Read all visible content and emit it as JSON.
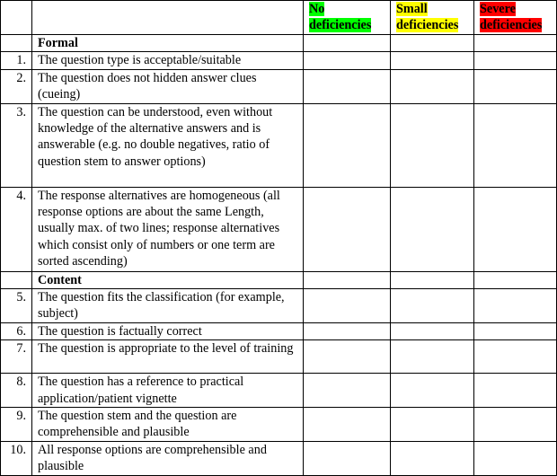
{
  "header": {
    "columns": [
      {
        "label": "No deficiencies",
        "color": "#00ff00"
      },
      {
        "label": "Small deficiencies",
        "color": "#ffff00"
      },
      {
        "label": "Severe deficiencies",
        "color": "#ff0000"
      }
    ]
  },
  "sections": [
    {
      "title": "Formal",
      "items": [
        {
          "num": "1.",
          "text": "The question type is acceptable/suitable"
        },
        {
          "num": "2.",
          "text": "The question does not hidden answer clues (cueing)"
        },
        {
          "num": "3.",
          "text": "The question can be understood, even without knowledge of the alternative answers and is answerable (e.g. no double negatives, ratio of question stem to answer options)"
        },
        {
          "num": "4.",
          "text": "The response alternatives are homogeneous (all response options are about the same Length, usually max. of two lines; response alternatives which consist  only of numbers or one term are sorted ascending)"
        }
      ]
    },
    {
      "title": "Content",
      "items": [
        {
          "num": "5.",
          "text": "The question fits the classification (for example, subject)"
        },
        {
          "num": "6.",
          "text": "The question is factually correct"
        },
        {
          "num": "7.",
          "text": "The question is appropriate to the level of training"
        },
        {
          "num": "8.",
          "text": "The question has a reference to practical application/patient vignette"
        },
        {
          "num": "9.",
          "text": "The question stem and the question are comprehensible and plausible"
        },
        {
          "num": "10.",
          "text": "All response options are comprehensible and plausible"
        }
      ]
    }
  ]
}
